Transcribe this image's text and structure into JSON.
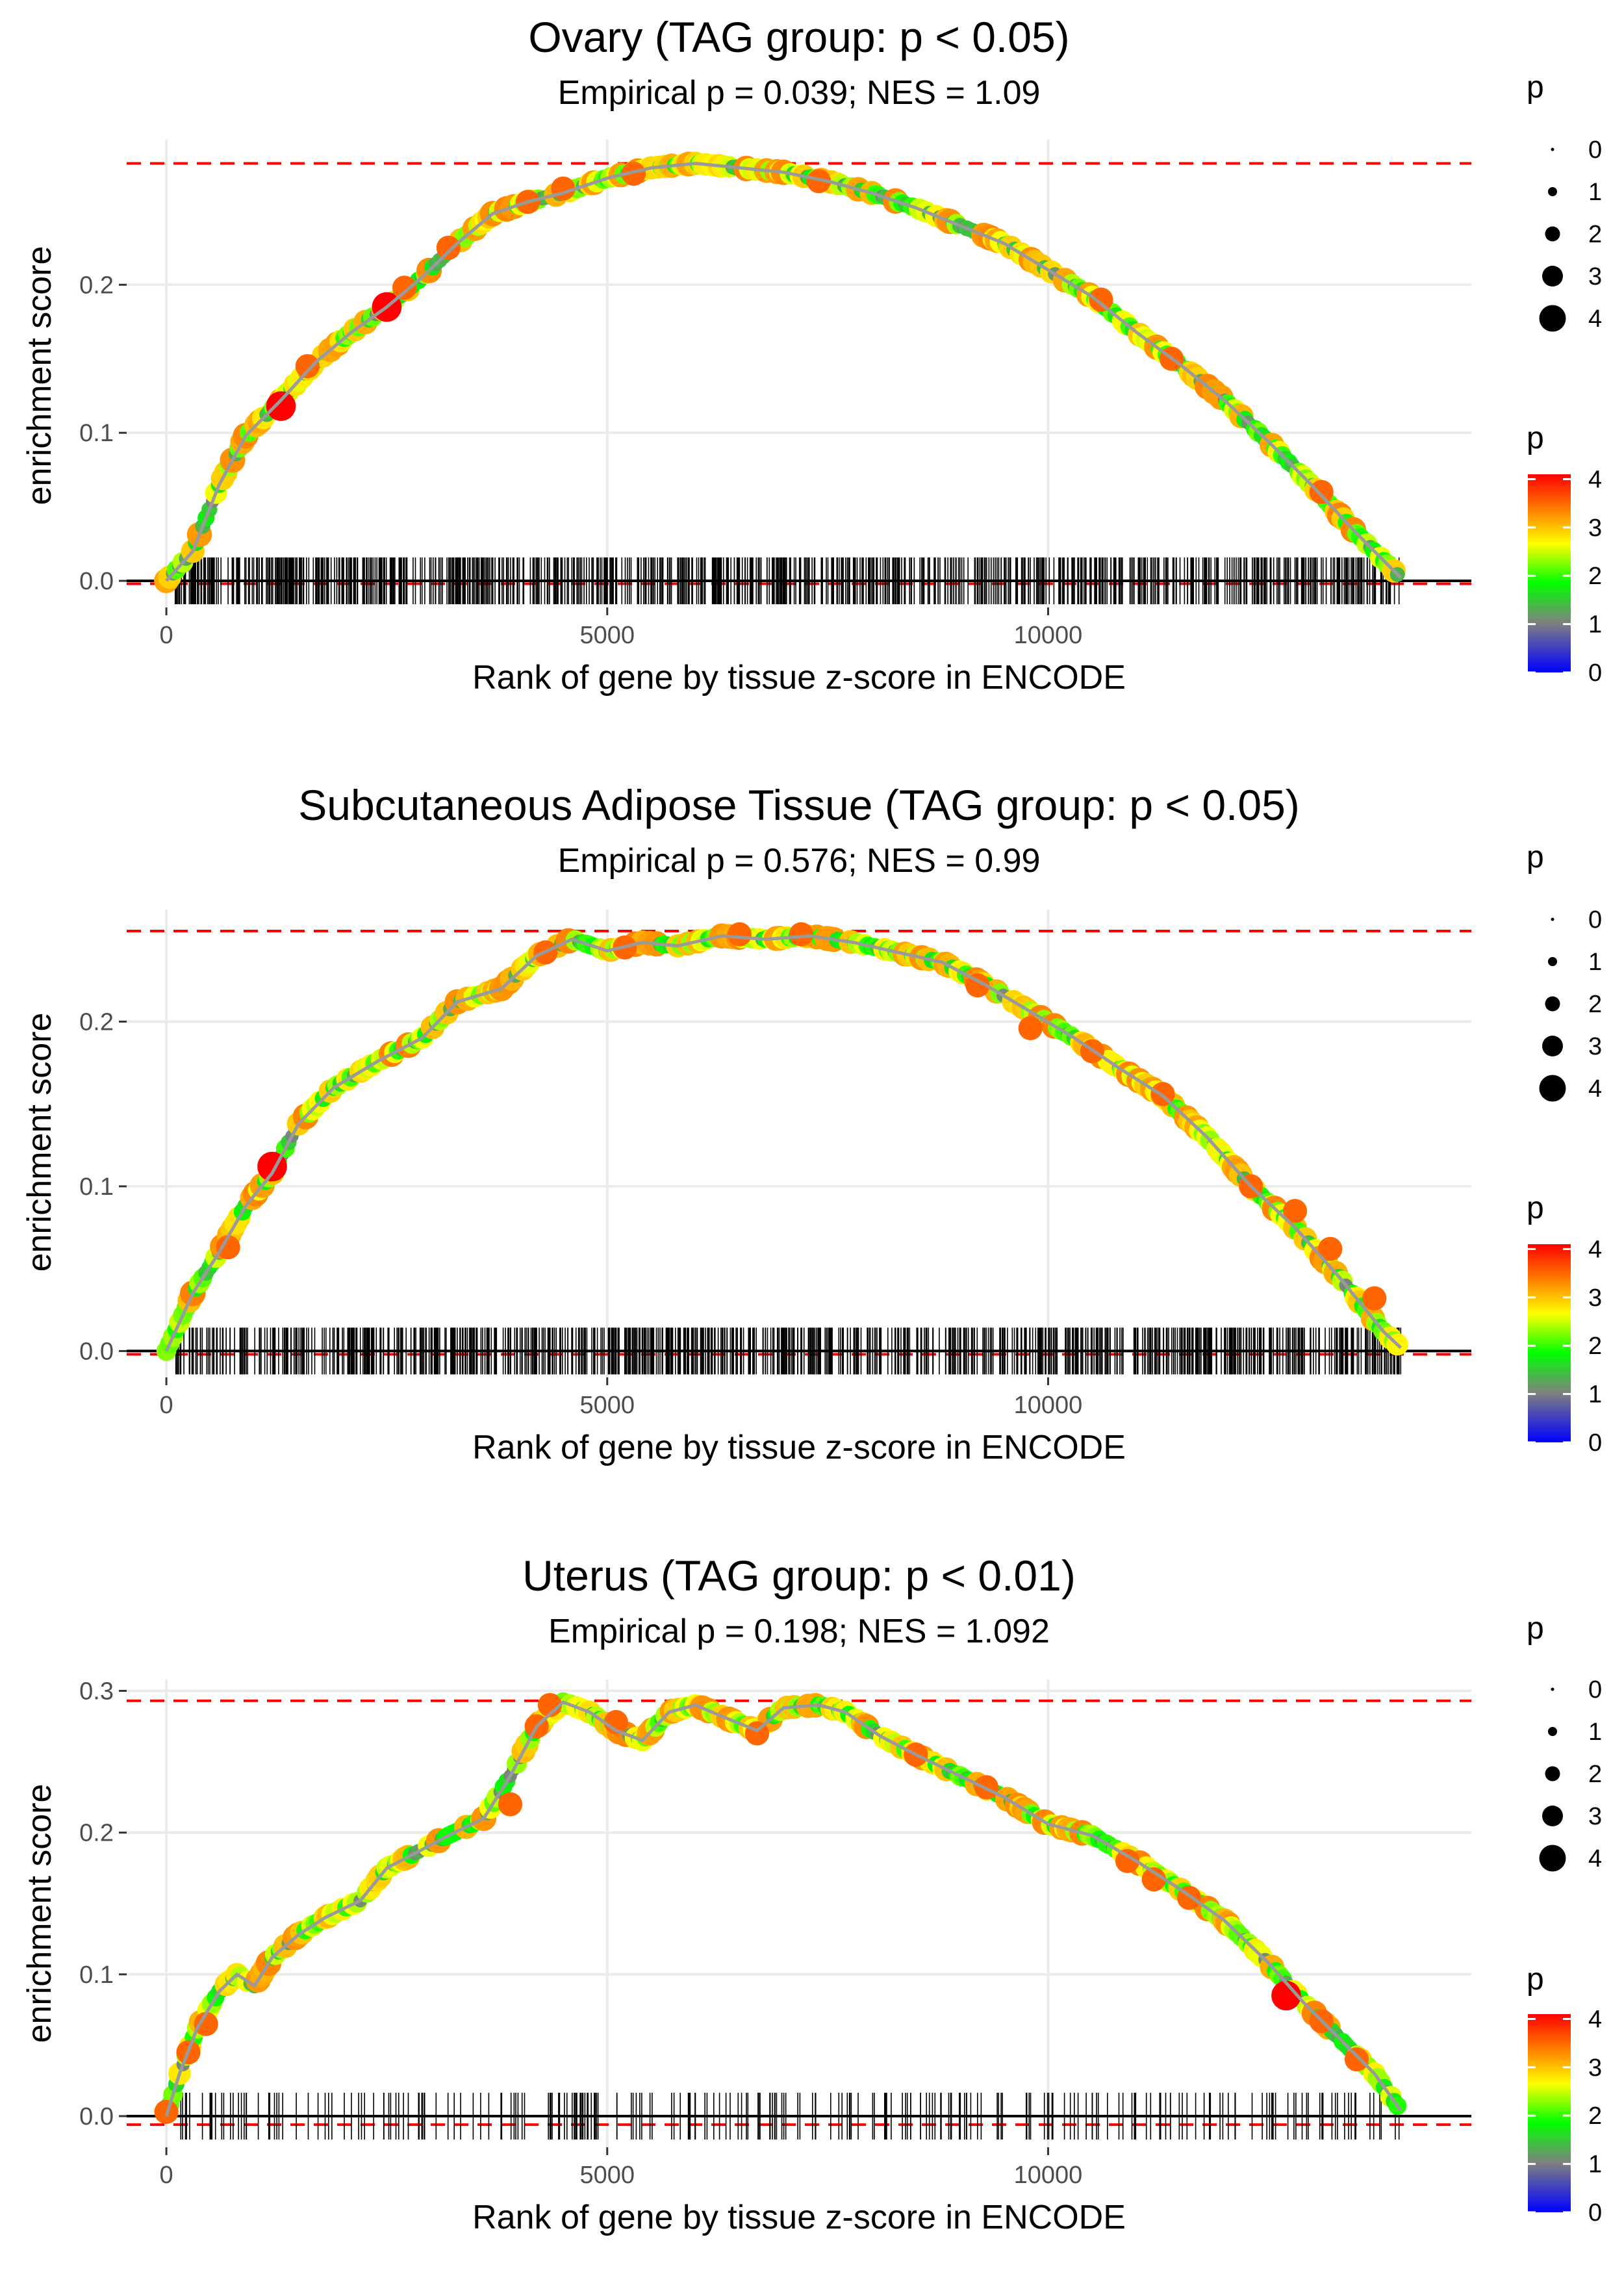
{
  "chart_data": [
    {
      "type": "scatter",
      "title": "Ovary (TAG group: p < 0.05)",
      "subtitle": "Empirical p = 0.039; NES = 1.09",
      "xlabel": "Rank of gene by tissue z-score in ENCODE",
      "ylabel": "enrichment score",
      "xlim": [
        -450,
        14800
      ],
      "ylim": [
        -0.018,
        0.298
      ],
      "xticks": [
        0,
        5000,
        10000
      ],
      "xtick_labels": [
        "0",
        "5000",
        "10000"
      ],
      "yticks": [
        0.0,
        0.1,
        0.2
      ],
      "ytick_labels": [
        "0.0",
        "0.1",
        "0.2"
      ],
      "max_es": 0.282,
      "min_es": -0.002,
      "gene_count_end": 14000,
      "hit_density": "dense",
      "curve": [
        [
          0,
          0
        ],
        [
          300,
          0.02
        ],
        [
          600,
          0.065
        ],
        [
          900,
          0.098
        ],
        [
          1300,
          0.122
        ],
        [
          1700,
          0.148
        ],
        [
          2100,
          0.168
        ],
        [
          2500,
          0.185
        ],
        [
          2900,
          0.205
        ],
        [
          3300,
          0.228
        ],
        [
          3700,
          0.248
        ],
        [
          4100,
          0.256
        ],
        [
          4500,
          0.262
        ],
        [
          5000,
          0.272
        ],
        [
          5500,
          0.279
        ],
        [
          6000,
          0.282
        ],
        [
          6500,
          0.279
        ],
        [
          7000,
          0.276
        ],
        [
          7500,
          0.27
        ],
        [
          8000,
          0.262
        ],
        [
          8500,
          0.252
        ],
        [
          9000,
          0.24
        ],
        [
          9500,
          0.228
        ],
        [
          10000,
          0.21
        ],
        [
          10500,
          0.192
        ],
        [
          11000,
          0.168
        ],
        [
          11500,
          0.146
        ],
        [
          12000,
          0.122
        ],
        [
          12500,
          0.094
        ],
        [
          13000,
          0.064
        ],
        [
          13500,
          0.032
        ],
        [
          14000,
          0.002
        ]
      ],
      "highlights": [
        [
          1300,
          0.118,
          4
        ],
        [
          1600,
          0.145,
          3
        ],
        [
          2500,
          0.185,
          4
        ],
        [
          2700,
          0.198,
          3
        ],
        [
          3200,
          0.225,
          3
        ],
        [
          4100,
          0.256,
          3
        ],
        [
          4500,
          0.265,
          3
        ],
        [
          5300,
          0.275,
          3
        ],
        [
          7400,
          0.27,
          3
        ],
        [
          10600,
          0.19,
          3
        ],
        [
          11400,
          0.15,
          3
        ],
        [
          13100,
          0.06,
          3
        ]
      ],
      "legend_size": {
        "title": "p",
        "values": [
          "0",
          "1",
          "2",
          "3",
          "4"
        ]
      },
      "legend_color": {
        "title": "p",
        "values": [
          "0",
          "1",
          "2",
          "3",
          "4"
        ],
        "colors": [
          "#0000ff",
          "#808080",
          "#00ff00",
          "#ffff00",
          "#ff7f00",
          "#ff0000"
        ]
      }
    },
    {
      "type": "scatter",
      "title": "Subcutaneous Adipose Tissue (TAG group: p < 0.05)",
      "subtitle": "Empirical p = 0.576; NES = 0.99",
      "xlabel": "Rank of gene by tissue z-score in ENCODE",
      "ylabel": "enrichment score",
      "xlim": [
        -450,
        14800
      ],
      "ylim": [
        -0.016,
        0.268
      ],
      "xticks": [
        0,
        5000,
        10000
      ],
      "xtick_labels": [
        "0",
        "5000",
        "10000"
      ],
      "yticks": [
        0.0,
        0.1,
        0.2
      ],
      "ytick_labels": [
        "0.0",
        "0.1",
        "0.2"
      ],
      "max_es": 0.255,
      "min_es": -0.002,
      "gene_count_end": 14000,
      "hit_density": "dense",
      "curve": [
        [
          0,
          0
        ],
        [
          300,
          0.035
        ],
        [
          600,
          0.06
        ],
        [
          900,
          0.088
        ],
        [
          1200,
          0.108
        ],
        [
          1500,
          0.138
        ],
        [
          1900,
          0.16
        ],
        [
          2400,
          0.176
        ],
        [
          2900,
          0.19
        ],
        [
          3300,
          0.212
        ],
        [
          3800,
          0.22
        ],
        [
          4200,
          0.24
        ],
        [
          4600,
          0.25
        ],
        [
          5000,
          0.243
        ],
        [
          5400,
          0.248
        ],
        [
          5800,
          0.246
        ],
        [
          6300,
          0.252
        ],
        [
          6800,
          0.25
        ],
        [
          7300,
          0.252
        ],
        [
          7800,
          0.248
        ],
        [
          8300,
          0.242
        ],
        [
          8800,
          0.236
        ],
        [
          9300,
          0.222
        ],
        [
          9800,
          0.206
        ],
        [
          10300,
          0.19
        ],
        [
          10800,
          0.172
        ],
        [
          11300,
          0.155
        ],
        [
          11800,
          0.13
        ],
        [
          12300,
          0.1
        ],
        [
          12800,
          0.075
        ],
        [
          13300,
          0.045
        ],
        [
          13800,
          0.012
        ],
        [
          14000,
          0.002
        ]
      ],
      "highlights": [
        [
          700,
          0.063,
          3
        ],
        [
          1200,
          0.112,
          4
        ],
        [
          4300,
          0.242,
          3
        ],
        [
          5200,
          0.245,
          3
        ],
        [
          6500,
          0.253,
          3
        ],
        [
          7200,
          0.253,
          3
        ],
        [
          9200,
          0.222,
          3
        ],
        [
          9800,
          0.196,
          3
        ],
        [
          10500,
          0.182,
          3
        ],
        [
          11300,
          0.156,
          3
        ],
        [
          12300,
          0.1,
          3
        ],
        [
          12800,
          0.085,
          3
        ],
        [
          13200,
          0.062,
          3
        ],
        [
          13700,
          0.032,
          3
        ]
      ],
      "legend_size": {
        "title": "p",
        "values": [
          "0",
          "1",
          "2",
          "3",
          "4"
        ]
      },
      "legend_color": {
        "title": "p",
        "values": [
          "0",
          "1",
          "2",
          "3",
          "4"
        ],
        "colors": [
          "#0000ff",
          "#808080",
          "#00ff00",
          "#ffff00",
          "#ff7f00",
          "#ff0000"
        ]
      }
    },
    {
      "type": "scatter",
      "title": "Uterus (TAG group: p < 0.01)",
      "subtitle": "Empirical p = 0.198; NES = 1.092",
      "xlabel": "Rank of gene by tissue z-score in ENCODE",
      "ylabel": "enrichment score",
      "xlim": [
        -450,
        14800
      ],
      "ylim": [
        -0.022,
        0.308
      ],
      "xticks": [
        0,
        5000,
        10000
      ],
      "xtick_labels": [
        "0",
        "5000",
        "10000"
      ],
      "yticks": [
        0.0,
        0.1,
        0.2,
        0.3
      ],
      "ytick_labels": [
        "0.0",
        "0.1",
        "0.2",
        "0.3"
      ],
      "max_es": 0.293,
      "min_es": -0.006,
      "gene_count_end": 14000,
      "hit_density": "sparse",
      "curve": [
        [
          0,
          0
        ],
        [
          150,
          0.03
        ],
        [
          350,
          0.062
        ],
        [
          600,
          0.088
        ],
        [
          800,
          0.1
        ],
        [
          1000,
          0.092
        ],
        [
          1200,
          0.112
        ],
        [
          1500,
          0.128
        ],
        [
          1800,
          0.14
        ],
        [
          2200,
          0.152
        ],
        [
          2500,
          0.175
        ],
        [
          2900,
          0.188
        ],
        [
          3200,
          0.198
        ],
        [
          3600,
          0.21
        ],
        [
          3900,
          0.24
        ],
        [
          4200,
          0.275
        ],
        [
          4500,
          0.292
        ],
        [
          4800,
          0.285
        ],
        [
          5100,
          0.272
        ],
        [
          5400,
          0.265
        ],
        [
          5700,
          0.285
        ],
        [
          6000,
          0.29
        ],
        [
          6300,
          0.282
        ],
        [
          6700,
          0.272
        ],
        [
          7000,
          0.288
        ],
        [
          7400,
          0.29
        ],
        [
          7700,
          0.285
        ],
        [
          8100,
          0.268
        ],
        [
          8500,
          0.255
        ],
        [
          9000,
          0.24
        ],
        [
          9500,
          0.225
        ],
        [
          10000,
          0.206
        ],
        [
          10500,
          0.198
        ],
        [
          11000,
          0.18
        ],
        [
          11500,
          0.16
        ],
        [
          12000,
          0.138
        ],
        [
          12500,
          0.108
        ],
        [
          12900,
          0.08
        ],
        [
          13300,
          0.055
        ],
        [
          13700,
          0.03
        ],
        [
          14000,
          0.004
        ]
      ],
      "highlights": [
        [
          0,
          0.003,
          3
        ],
        [
          250,
          0.045,
          3
        ],
        [
          450,
          0.065,
          3
        ],
        [
          3900,
          0.22,
          3
        ],
        [
          4200,
          0.275,
          3
        ],
        [
          4350,
          0.29,
          3
        ],
        [
          5100,
          0.278,
          3
        ],
        [
          6700,
          0.27,
          3
        ],
        [
          8500,
          0.255,
          3
        ],
        [
          9300,
          0.232,
          3
        ],
        [
          10900,
          0.18,
          3
        ],
        [
          11200,
          0.167,
          3
        ],
        [
          11600,
          0.154,
          3
        ],
        [
          12700,
          0.085,
          4
        ],
        [
          13100,
          0.067,
          3
        ],
        [
          13500,
          0.04,
          3
        ]
      ],
      "legend_size": {
        "title": "p",
        "values": [
          "0",
          "1",
          "2",
          "3",
          "4"
        ]
      },
      "legend_color": {
        "title": "p",
        "values": [
          "0",
          "1",
          "2",
          "3",
          "4"
        ],
        "colors": [
          "#0000ff",
          "#808080",
          "#00ff00",
          "#ffff00",
          "#ff7f00",
          "#ff0000"
        ]
      }
    }
  ]
}
